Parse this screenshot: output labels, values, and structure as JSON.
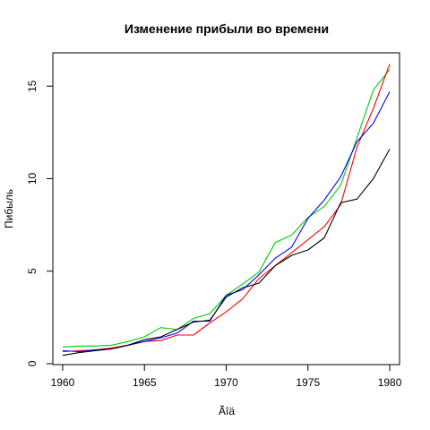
{
  "chart_data": {
    "type": "line",
    "title": "Изменение прибыли во времени",
    "xlabel": "Ãîä",
    "ylabel": "Пибыль",
    "xlim": [
      1959.4,
      1980.6
    ],
    "ylim": [
      -0.05,
      16.8
    ],
    "x_ticks": [
      1960,
      1965,
      1970,
      1975,
      1980
    ],
    "y_ticks": [
      0,
      5,
      10,
      15
    ],
    "grid": false,
    "legend": "none",
    "x": [
      1960,
      1961,
      1962,
      1963,
      1964,
      1965,
      1966,
      1967,
      1968,
      1969,
      1970,
      1971,
      1972,
      1973,
      1974,
      1975,
      1976,
      1977,
      1978,
      1979,
      1980
    ],
    "series": [
      {
        "color": "#00cc00",
        "values": [
          0.9,
          0.95,
          0.95,
          1.0,
          1.2,
          1.45,
          1.95,
          1.85,
          2.45,
          2.7,
          3.7,
          4.3,
          4.95,
          6.55,
          6.95,
          7.9,
          8.5,
          9.65,
          12.2,
          14.8,
          15.9
        ]
      },
      {
        "color": "#ff0000",
        "values": [
          0.65,
          0.7,
          0.75,
          0.85,
          1.0,
          1.2,
          1.25,
          1.55,
          1.55,
          2.2,
          2.8,
          3.5,
          4.6,
          5.3,
          6.0,
          6.7,
          7.4,
          8.6,
          11.7,
          13.8,
          16.2
        ]
      },
      {
        "color": "#0000ff",
        "values": [
          0.7,
          0.65,
          0.75,
          0.8,
          1.0,
          1.2,
          1.4,
          1.65,
          2.3,
          2.3,
          3.7,
          4.0,
          4.8,
          5.7,
          6.3,
          7.85,
          8.85,
          10.1,
          12.0,
          13.0,
          14.7
        ]
      },
      {
        "color": "#000000",
        "values": [
          0.45,
          0.6,
          0.7,
          0.8,
          1.0,
          1.3,
          1.45,
          1.85,
          2.25,
          2.35,
          3.6,
          4.1,
          4.35,
          5.3,
          5.85,
          6.15,
          6.8,
          8.7,
          8.9,
          10.0,
          11.6
        ]
      }
    ]
  }
}
